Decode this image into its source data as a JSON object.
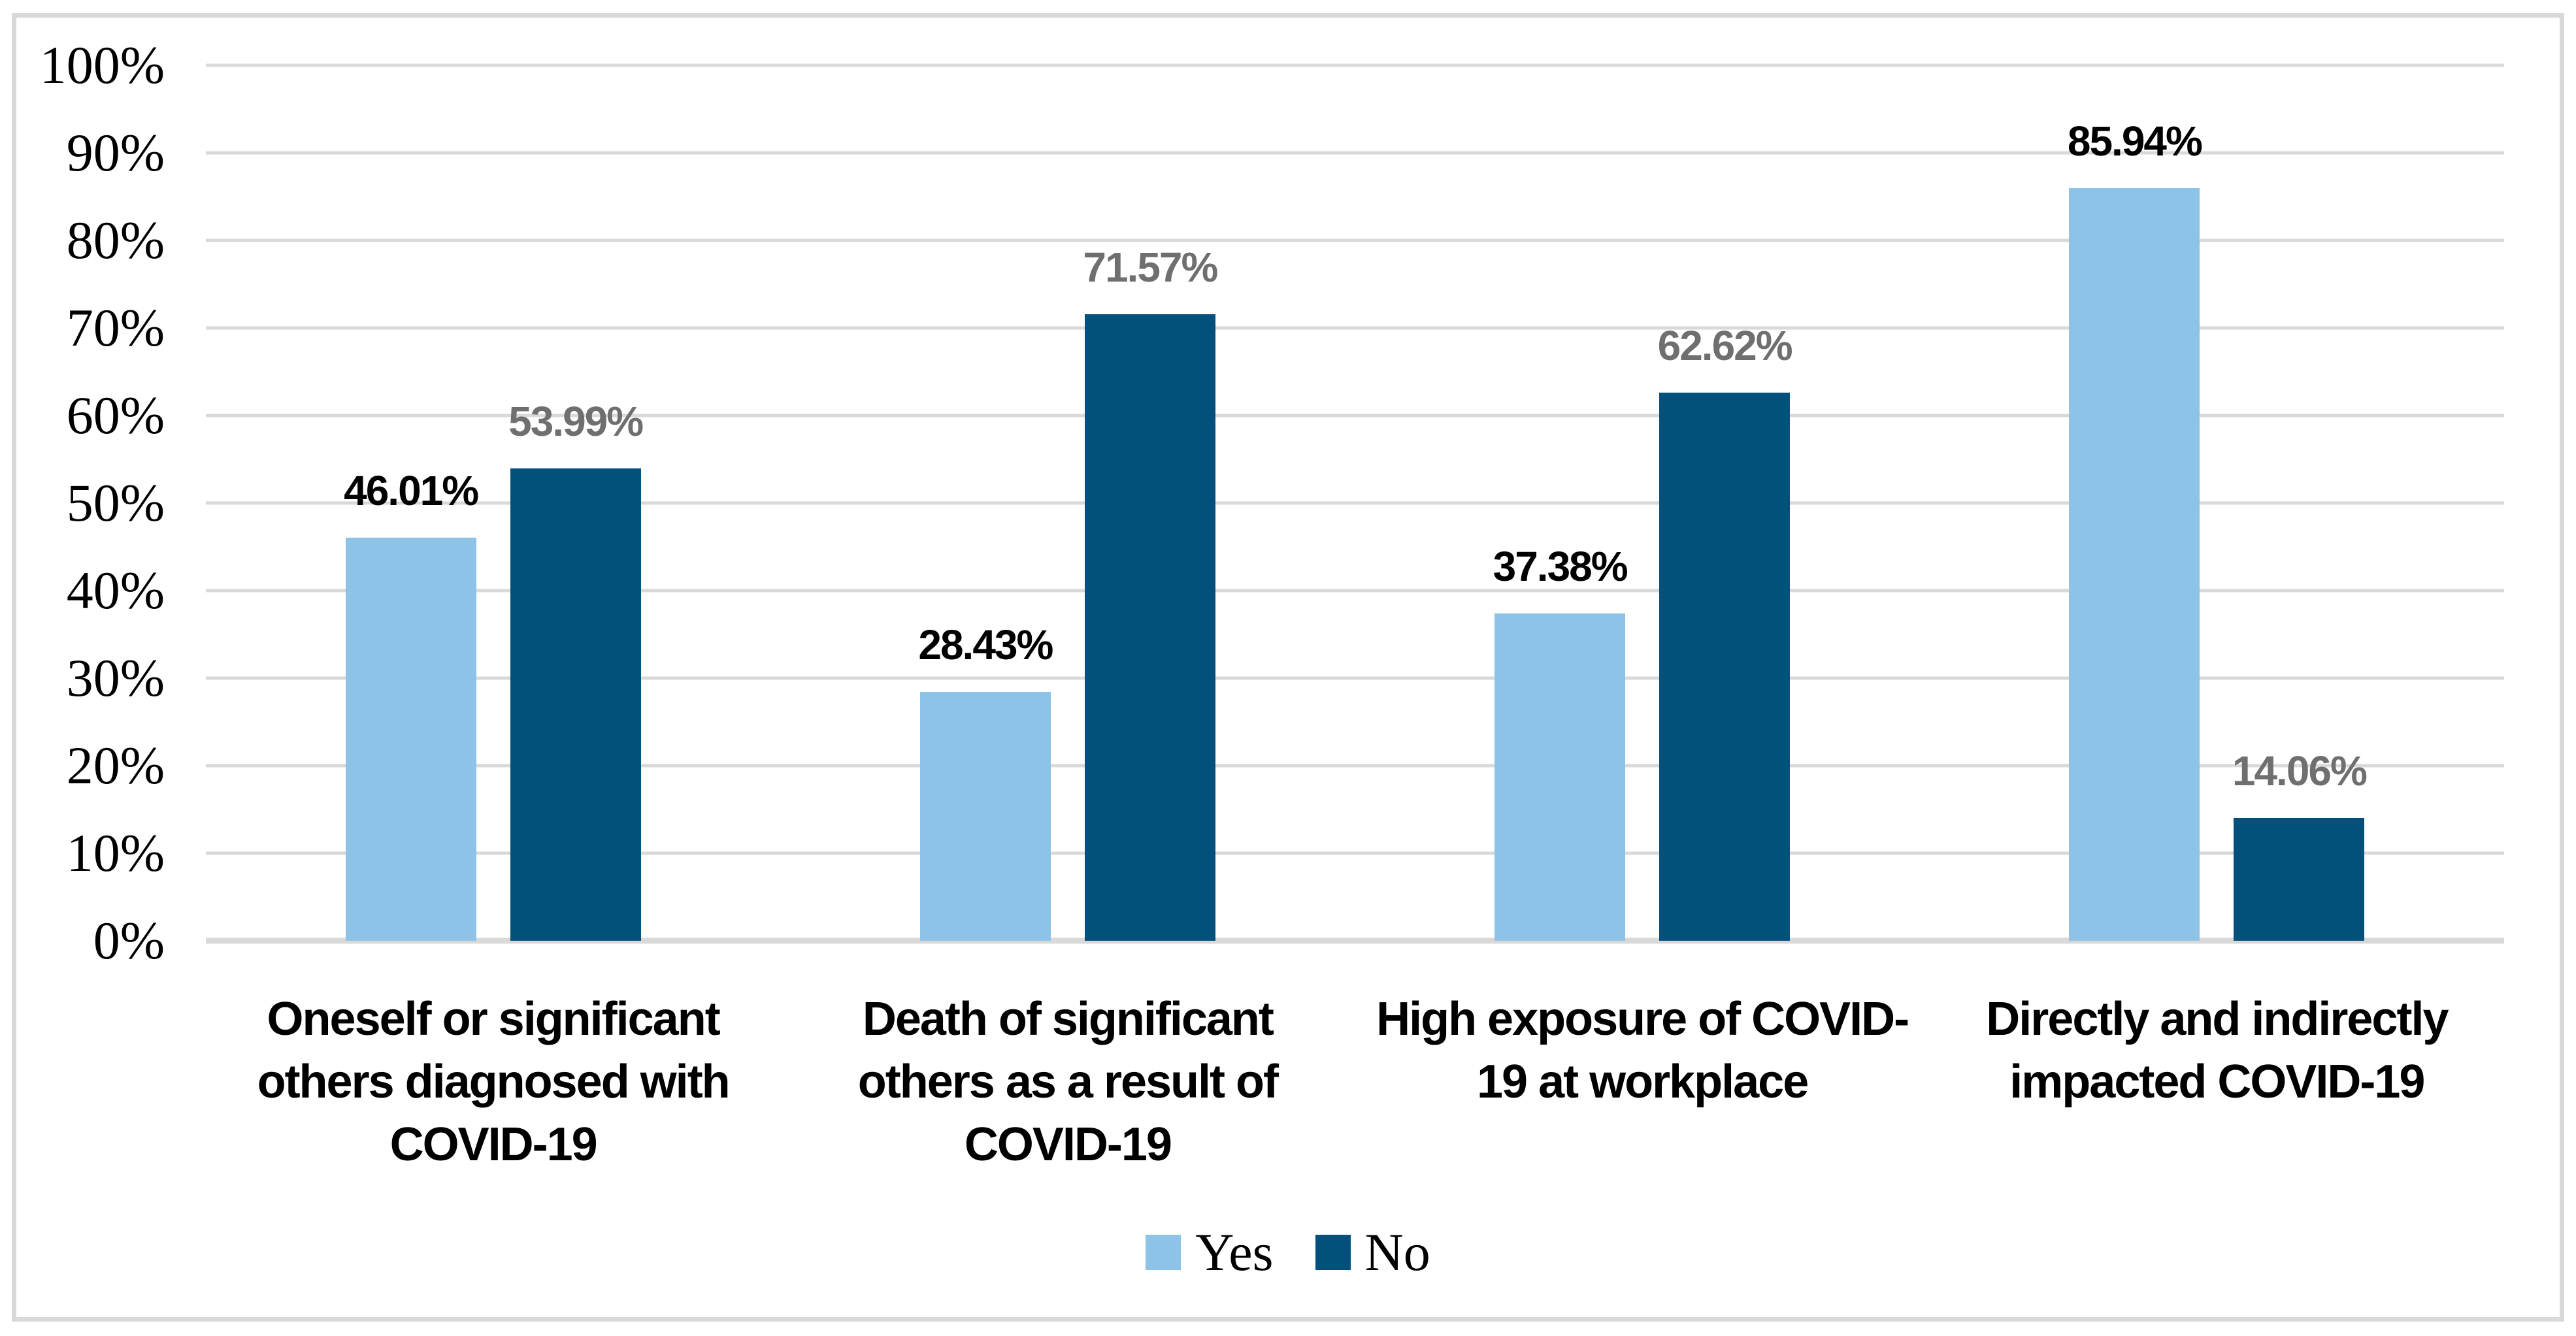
{
  "chart_data": {
    "type": "bar",
    "title": "",
    "xlabel": "",
    "ylabel": "",
    "categories": [
      "Oneself or significant\nothers diagnosed with\nCOVID-19",
      "Death of significant\nothers as a result of\nCOVID-19",
      "High exposure of COVID-\n19 at workplace",
      "Directly and indirectly\nimpacted COVID-19"
    ],
    "series": [
      {
        "name": "Yes",
        "color": "#8dc3e6",
        "label_color": "#000000",
        "values": [
          46.01,
          28.43,
          37.38,
          85.94
        ],
        "labels": [
          "46.01%",
          "28.43%",
          "37.38%",
          "85.94%"
        ]
      },
      {
        "name": "No",
        "color": "#03507d",
        "label_color": "#6f6f6f",
        "values": [
          53.99,
          71.57,
          62.62,
          14.06
        ],
        "labels": [
          "53.99%",
          "71.57%",
          "62.62%",
          "14.06%"
        ]
      }
    ],
    "y_axis": {
      "min": 0,
      "max": 100,
      "step": 10,
      "ticks": [
        "0%",
        "10%",
        "20%",
        "30%",
        "40%",
        "50%",
        "60%",
        "70%",
        "80%",
        "90%",
        "100%"
      ]
    },
    "grid": true,
    "legend_position": "bottom",
    "style": {
      "gridline_color": "#d9d9d9",
      "axis_line_color": "#d9d9d9",
      "border_color": "#d9d9d9",
      "background_color": "#ffffff"
    }
  }
}
